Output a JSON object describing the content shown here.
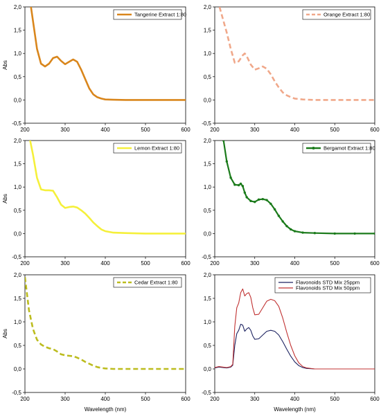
{
  "figure": {
    "common": {
      "xlim": [
        200,
        600
      ],
      "ylim": [
        -0.5,
        2.0
      ],
      "x_ticks": [
        "200",
        "300",
        "400",
        "500",
        "600"
      ],
      "y_ticks": [
        "-0,5",
        "0,0",
        "0,5",
        "1,0",
        "1,5",
        "2,0"
      ],
      "y_tick_values": [
        -0.5,
        0,
        0.5,
        1.0,
        1.5,
        2.0
      ],
      "x_tick_values": [
        200,
        300,
        400,
        500,
        600
      ]
    }
  },
  "chart_data": [
    {
      "type": "line",
      "panel": "top-left",
      "ylabel": "Abs",
      "xlabel": "",
      "legend_position": "top-right",
      "series": [
        {
          "name": "Tangerine Extract 1:80",
          "color": "#d9861c",
          "style": "solid",
          "x": [
            215,
            220,
            225,
            230,
            240,
            250,
            260,
            270,
            280,
            290,
            300,
            310,
            320,
            330,
            340,
            350,
            360,
            370,
            380,
            390,
            400,
            420,
            450,
            500,
            550,
            600
          ],
          "y": [
            2.0,
            1.7,
            1.4,
            1.1,
            0.78,
            0.72,
            0.78,
            0.9,
            0.93,
            0.84,
            0.77,
            0.82,
            0.87,
            0.82,
            0.65,
            0.45,
            0.25,
            0.12,
            0.06,
            0.03,
            0.01,
            0.005,
            0.0,
            0.0,
            0.0,
            0.0
          ]
        }
      ]
    },
    {
      "type": "line",
      "panel": "top-right",
      "ylabel": "",
      "xlabel": "",
      "legend_position": "top-right",
      "series": [
        {
          "name": "Orange Extract 1:80",
          "color": "#f0a88a",
          "style": "dashed",
          "x": [
            212,
            220,
            230,
            240,
            250,
            260,
            270,
            275,
            280,
            290,
            300,
            310,
            320,
            330,
            340,
            350,
            360,
            370,
            380,
            390,
            400,
            420,
            450,
            500,
            550,
            600
          ],
          "y": [
            2.0,
            1.75,
            1.45,
            1.1,
            0.8,
            0.83,
            0.96,
            1.0,
            0.94,
            0.76,
            0.65,
            0.68,
            0.72,
            0.67,
            0.55,
            0.4,
            0.27,
            0.16,
            0.1,
            0.06,
            0.03,
            0.01,
            0.0,
            0.0,
            0.0,
            0.0
          ]
        }
      ]
    },
    {
      "type": "line",
      "panel": "middle-left",
      "ylabel": "Abs",
      "xlabel": "",
      "legend_position": "top-right",
      "series": [
        {
          "name": "Lemon Extract 1:80",
          "color": "#f5f03a",
          "style": "solid",
          "x": [
            213,
            220,
            230,
            240,
            250,
            260,
            270,
            280,
            290,
            300,
            310,
            320,
            330,
            340,
            350,
            360,
            370,
            380,
            390,
            400,
            420,
            450,
            500,
            550,
            600
          ],
          "y": [
            2.0,
            1.7,
            1.2,
            0.95,
            0.93,
            0.93,
            0.92,
            0.78,
            0.62,
            0.55,
            0.57,
            0.58,
            0.56,
            0.5,
            0.43,
            0.34,
            0.24,
            0.16,
            0.09,
            0.05,
            0.02,
            0.01,
            0.0,
            0.0,
            0.0
          ]
        }
      ]
    },
    {
      "type": "line",
      "panel": "middle-right",
      "ylabel": "",
      "xlabel": "",
      "legend_position": "top-right",
      "series": [
        {
          "name": "Bergamot Extract 1:80",
          "color": "#1a7a1a",
          "style": "solid-markers",
          "x": [
            222,
            230,
            240,
            250,
            260,
            265,
            270,
            275,
            280,
            290,
            300,
            310,
            320,
            330,
            340,
            350,
            360,
            370,
            380,
            390,
            400,
            420,
            450,
            500,
            550,
            600
          ],
          "y": [
            2.0,
            1.55,
            1.2,
            1.05,
            1.04,
            1.07,
            1.02,
            0.88,
            0.78,
            0.7,
            0.68,
            0.73,
            0.74,
            0.72,
            0.64,
            0.52,
            0.38,
            0.26,
            0.16,
            0.09,
            0.05,
            0.02,
            0.01,
            0.0,
            0.0,
            0.0
          ]
        }
      ]
    },
    {
      "type": "line",
      "panel": "bottom-left",
      "ylabel": "Abs",
      "xlabel": "Wavelength (nm)",
      "legend_position": "top-right",
      "series": [
        {
          "name": "Cedar  Extract 1:80",
          "color": "#bcbc1e",
          "style": "dashed",
          "x": [
            200,
            205,
            210,
            220,
            230,
            240,
            250,
            260,
            270,
            280,
            290,
            300,
            310,
            320,
            330,
            340,
            350,
            360,
            370,
            380,
            390,
            400,
            420,
            450,
            500,
            550,
            600
          ],
          "y": [
            1.95,
            1.6,
            1.25,
            0.85,
            0.62,
            0.52,
            0.47,
            0.44,
            0.42,
            0.37,
            0.31,
            0.29,
            0.28,
            0.27,
            0.24,
            0.2,
            0.15,
            0.11,
            0.07,
            0.04,
            0.02,
            0.01,
            0.0,
            0.0,
            0.0,
            0.0,
            0.0
          ]
        }
      ]
    },
    {
      "type": "line",
      "panel": "bottom-right",
      "ylabel": "",
      "xlabel": "Wavelength (nm)",
      "legend_position": "top-right",
      "series": [
        {
          "name": "Flavonoids STD Mix 25ppm",
          "color": "#1c2260",
          "style": "solid",
          "x": [
            200,
            210,
            220,
            230,
            240,
            245,
            250,
            255,
            260,
            265,
            270,
            275,
            280,
            285,
            290,
            295,
            300,
            310,
            320,
            330,
            340,
            350,
            360,
            370,
            380,
            390,
            400,
            410,
            420,
            430,
            450,
            500,
            550,
            600
          ],
          "y": [
            0.02,
            0.04,
            0.03,
            0.02,
            0.04,
            0.08,
            0.5,
            0.75,
            0.82,
            0.95,
            0.93,
            0.8,
            0.85,
            0.88,
            0.82,
            0.7,
            0.63,
            0.64,
            0.72,
            0.8,
            0.82,
            0.8,
            0.72,
            0.58,
            0.42,
            0.27,
            0.15,
            0.07,
            0.03,
            0.01,
            0.0,
            0.0,
            0.0,
            0.0
          ]
        },
        {
          "name": "Flavonoids STD Mix 50ppm",
          "color": "#c03030",
          "style": "solid",
          "x": [
            200,
            210,
            220,
            230,
            240,
            245,
            250,
            255,
            260,
            265,
            270,
            275,
            280,
            285,
            290,
            295,
            300,
            310,
            320,
            330,
            340,
            350,
            360,
            370,
            380,
            390,
            400,
            410,
            420,
            430,
            450,
            500,
            550,
            600
          ],
          "y": [
            0.03,
            0.05,
            0.04,
            0.03,
            0.05,
            0.1,
            0.9,
            1.3,
            1.4,
            1.62,
            1.7,
            1.55,
            1.6,
            1.62,
            1.52,
            1.3,
            1.15,
            1.16,
            1.3,
            1.44,
            1.48,
            1.45,
            1.33,
            1.08,
            0.78,
            0.5,
            0.28,
            0.13,
            0.05,
            0.02,
            0.0,
            0.0,
            0.0,
            0.0
          ]
        }
      ]
    }
  ]
}
